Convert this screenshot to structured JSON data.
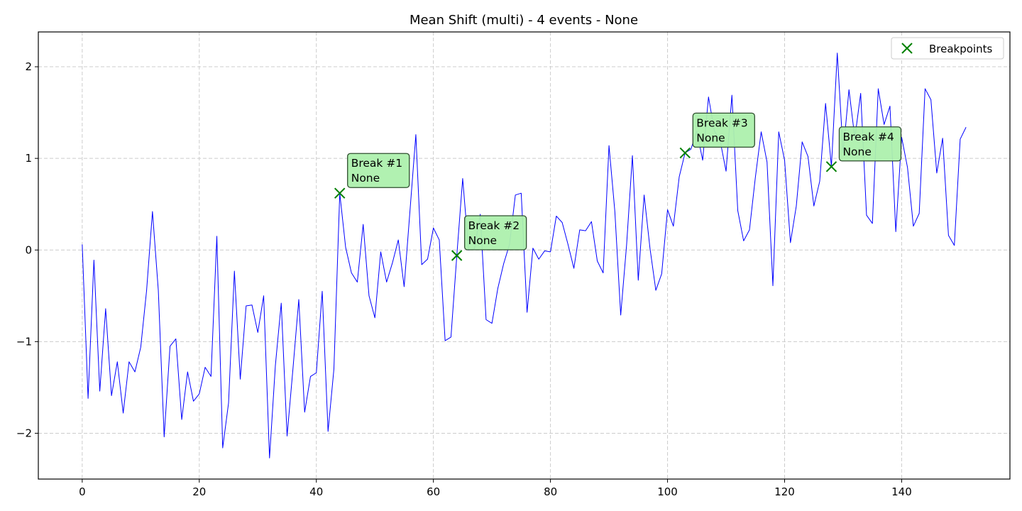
{
  "chart_data": {
    "type": "line",
    "title": "Mean Shift (multi) - 4 events - None",
    "xlabel": "",
    "ylabel": "",
    "xlim": [
      -7.5,
      158.5
    ],
    "ylim": [
      -2.5,
      2.38
    ],
    "xticks": [
      0,
      20,
      40,
      60,
      80,
      100,
      120,
      140
    ],
    "yticks": [
      -2,
      -1,
      0,
      1,
      2
    ],
    "grid": true,
    "legend": {
      "placement": "top-right",
      "entries": [
        "Breakpoints"
      ]
    },
    "colors": {
      "line": "#0000ff",
      "marker": "#008000",
      "annotation_fill": "#adf0ad",
      "annotation_edge": "#2f4f2f",
      "grid": "#cccccc"
    },
    "series": [
      {
        "values": [
          0.06,
          -1.62,
          -0.11,
          -1.54,
          -0.64,
          -1.59,
          -1.22,
          -1.78,
          -1.22,
          -1.33,
          -1.06,
          -0.44,
          0.42,
          -0.44,
          -2.04,
          -1.05,
          -0.97,
          -1.85,
          -1.33,
          -1.65,
          -1.57,
          -1.28,
          -1.38,
          0.15,
          -2.16,
          -1.67,
          -0.23,
          -1.41,
          -0.61,
          -0.6,
          -0.9,
          -0.5,
          -2.27,
          -1.26,
          -0.58,
          -2.03,
          -1.3,
          -0.54,
          -1.77,
          -1.38,
          -1.34,
          -0.45,
          -1.98,
          -1.3,
          0.62,
          0.03,
          -0.25,
          -0.35,
          0.28,
          -0.5,
          -0.74,
          -0.02,
          -0.35,
          -0.14,
          0.11,
          -0.4,
          0.43,
          1.26,
          -0.16,
          -0.1,
          0.24,
          0.11,
          -0.99,
          -0.95,
          -0.06,
          0.78,
          0.0,
          0.01,
          0.39,
          -0.76,
          -0.8,
          -0.42,
          -0.15,
          0.06,
          0.6,
          0.62,
          -0.68,
          0.02,
          -0.1,
          -0.01,
          -0.02,
          0.37,
          0.3,
          0.06,
          -0.2,
          0.22,
          0.21,
          0.31,
          -0.12,
          -0.25,
          1.14,
          0.42,
          -0.71,
          0.05,
          1.03,
          -0.33,
          0.6,
          0.02,
          -0.44,
          -0.26,
          0.44,
          0.26,
          0.8,
          1.06,
          1.1,
          1.3,
          0.98,
          1.67,
          1.3,
          1.19,
          0.86,
          1.69,
          0.43,
          0.1,
          0.22,
          0.79,
          1.29,
          0.96,
          -0.39,
          1.29,
          0.98,
          0.08,
          0.48,
          1.18,
          1.02,
          0.48,
          0.75,
          1.6,
          0.91,
          2.15,
          1.06,
          1.75,
          1.22,
          1.71,
          0.38,
          0.29,
          1.76,
          1.37,
          1.57,
          0.2,
          1.23,
          0.9,
          0.26,
          0.4,
          1.76,
          1.64,
          0.84,
          1.22,
          0.16,
          0.05,
          1.21,
          1.34
        ]
      }
    ],
    "breakpoints": [
      {
        "x": 44,
        "y": 0.62,
        "label_line1": "Break #1",
        "label_line2": "None"
      },
      {
        "x": 64,
        "y": -0.06,
        "label_line1": "Break #2",
        "label_line2": "None"
      },
      {
        "x": 103,
        "y": 1.06,
        "label_line1": "Break #3",
        "label_line2": "None"
      },
      {
        "x": 128,
        "y": 0.91,
        "label_line1": "Break #4",
        "label_line2": "None"
      }
    ]
  }
}
